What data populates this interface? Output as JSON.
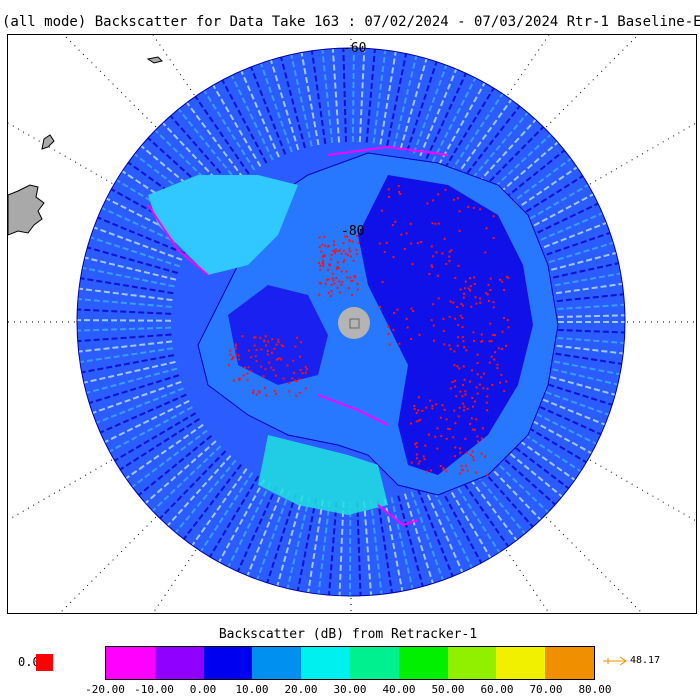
{
  "title": "(all mode) Backscatter for Data Take 163 : 07/02/2024 - 07/03/2024 Rtr-1 Baseline-E",
  "map": {
    "projection": "south-polar-stereographic",
    "latitude_labels": [
      "-60",
      "-80"
    ],
    "pole_fill_color": "#b4b4b4",
    "landmass_color": "#a9a9a9"
  },
  "colorbar": {
    "title": "Backscatter (dB) from Retracker-1",
    "colors": [
      "#ff00ff",
      "#9000ff",
      "#0000f0",
      "#0090f0",
      "#00f0f0",
      "#00f090",
      "#00f000",
      "#90f000",
      "#f0f000",
      "#f09000"
    ],
    "ticks": [
      "-20.00",
      "-10.00",
      "0.00",
      "10.00",
      "20.00",
      "30.00",
      "40.00",
      "50.00",
      "60.00",
      "70.00",
      "80.00"
    ],
    "under_value": "0.0",
    "under_color": "#ff0000",
    "over_arrow": "+-->",
    "over_value": "48.17",
    "over_color": "#f09000"
  }
}
